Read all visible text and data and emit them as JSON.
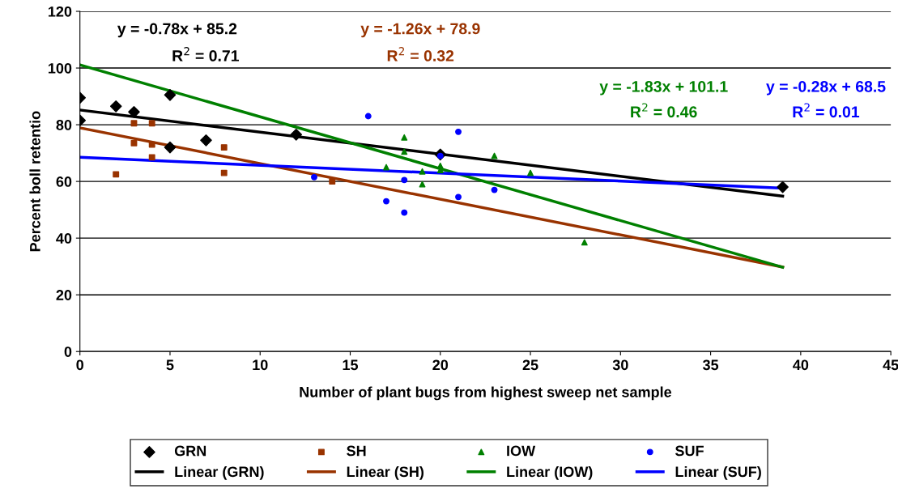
{
  "chart_data": {
    "type": "scatter",
    "xlabel": "Number of plant bugs from highest sweep net sample",
    "ylabel": "Percent boll retentio",
    "xlim": [
      0,
      45
    ],
    "xticks": [
      0,
      5,
      10,
      15,
      20,
      25,
      30,
      35,
      40,
      45
    ],
    "ylim": [
      0,
      120
    ],
    "yticks": [
      0,
      20,
      40,
      60,
      80,
      100,
      120
    ],
    "grid": "y",
    "legend": "bottom",
    "annotations": [
      "y = -0.78x + 85.2",
      "R$^{2}$ = 0.71",
      "y = -1.26x + 78.9",
      "R$^{2}$ = 0.32",
      "y = -1.83x + 101.1",
      "R$^{2}$ = 0.46",
      "y = -0.28x + 68.5",
      "R$^{2}$ = 0.01"
    ],
    "series": [
      {
        "name": "GRN",
        "marker": "diamond",
        "color": "#000000",
        "x": [
          0,
          0,
          2,
          3,
          5,
          5,
          7,
          12,
          20,
          39
        ],
        "values": [
          89.5,
          81.5,
          86.5,
          84.5,
          90.5,
          72,
          74.5,
          76.5,
          69.5,
          58
        ]
      },
      {
        "name": "SH",
        "marker": "square",
        "color": "#993300",
        "x": [
          2,
          3,
          3,
          4,
          4,
          4,
          8,
          8,
          14
        ],
        "values": [
          62.5,
          80.5,
          73.5,
          80.5,
          73,
          68.5,
          72,
          63,
          60
        ]
      },
      {
        "name": "IOW",
        "marker": "triangle",
        "color": "#008000",
        "x": [
          17,
          18,
          18,
          19,
          19,
          20,
          20,
          23,
          25,
          28
        ],
        "values": [
          65,
          75.5,
          70.5,
          63.5,
          59,
          65.5,
          64,
          69,
          63,
          38.5
        ]
      },
      {
        "name": "SUF",
        "marker": "circle",
        "color": "#0000ff",
        "x": [
          13,
          16,
          17,
          18,
          18,
          20,
          21,
          21,
          23
        ],
        "values": [
          61.5,
          83,
          53,
          60.5,
          49,
          69,
          77.5,
          54.5,
          57
        ]
      },
      {
        "name": "Linear (GRN)",
        "type": "line",
        "marker": "none",
        "color": "#000000",
        "x": [
          0,
          39
        ],
        "values": [
          85.2,
          54.8
        ]
      },
      {
        "name": "Linear (SH)",
        "type": "line",
        "marker": "none",
        "color": "#993300",
        "x": [
          0,
          39
        ],
        "values": [
          78.9,
          29.8
        ]
      },
      {
        "name": "Linear (IOW)",
        "type": "line",
        "marker": "none",
        "color": "#008000",
        "x": [
          0,
          39
        ],
        "values": [
          101.1,
          29.7
        ]
      },
      {
        "name": "Linear (SUF)",
        "type": "line",
        "marker": "none",
        "color": "#0000ff",
        "x": [
          0,
          39
        ],
        "values": [
          68.5,
          57.6
        ]
      }
    ]
  }
}
